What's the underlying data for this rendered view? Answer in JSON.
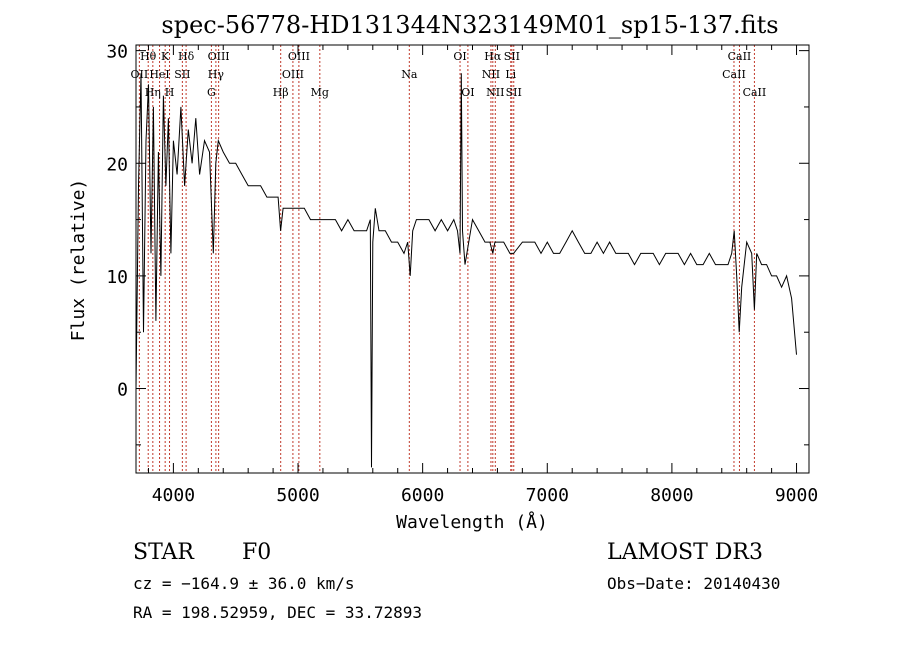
{
  "chart_data": {
    "type": "line",
    "title": "spec-56778-HD131344N323149M01_sp15-137.fits",
    "xlabel": "Wavelength (Å)",
    "ylabel": "Flux (relative)",
    "xlim": [
      3700,
      9100
    ],
    "ylim": [
      -7.5,
      30.5
    ],
    "xticks": [
      4000,
      5000,
      6000,
      7000,
      8000,
      9000
    ],
    "yticks": [
      0,
      10,
      20,
      30
    ],
    "series": [
      {
        "name": "spectrum",
        "x": [
          3700,
          3720,
          3740,
          3760,
          3780,
          3800,
          3820,
          3840,
          3860,
          3880,
          3900,
          3920,
          3940,
          3960,
          3980,
          4000,
          4030,
          4060,
          4090,
          4120,
          4150,
          4180,
          4210,
          4250,
          4290,
          4320,
          4340,
          4360,
          4400,
          4450,
          4500,
          4550,
          4600,
          4650,
          4700,
          4750,
          4800,
          4840,
          4860,
          4880,
          4920,
          4960,
          5000,
          5050,
          5100,
          5150,
          5200,
          5250,
          5300,
          5350,
          5400,
          5450,
          5500,
          5550,
          5580,
          5590,
          5600,
          5620,
          5650,
          5700,
          5750,
          5800,
          5850,
          5880,
          5900,
          5920,
          5950,
          6000,
          6050,
          6100,
          6150,
          6200,
          6250,
          6280,
          6300,
          6310,
          6320,
          6340,
          6400,
          6450,
          6500,
          6540,
          6563,
          6580,
          6600,
          6650,
          6700,
          6730,
          6800,
          6850,
          6900,
          6950,
          7000,
          7050,
          7100,
          7150,
          7200,
          7250,
          7300,
          7350,
          7400,
          7450,
          7500,
          7550,
          7600,
          7650,
          7700,
          7750,
          7800,
          7850,
          7900,
          7950,
          8000,
          8050,
          8100,
          8150,
          8200,
          8250,
          8300,
          8350,
          8400,
          8450,
          8480,
          8500,
          8520,
          8540,
          8560,
          8600,
          8640,
          8662,
          8680,
          8720,
          8760,
          8800,
          8840,
          8880,
          8920,
          8960,
          9000
        ],
        "y": [
          0,
          18,
          28,
          5,
          22,
          27,
          12,
          25,
          6,
          21,
          10,
          26,
          18,
          24,
          12,
          22,
          19,
          25,
          18,
          23,
          20,
          24,
          19,
          22,
          21,
          12,
          20,
          22,
          21,
          20,
          20,
          19,
          18,
          18,
          18,
          17,
          17,
          17,
          14,
          16,
          16,
          16,
          16,
          16,
          15,
          15,
          15,
          15,
          15,
          14,
          15,
          14,
          14,
          14,
          15,
          -7,
          13,
          16,
          14,
          14,
          13,
          13,
          12,
          13,
          10,
          14,
          15,
          15,
          15,
          14,
          15,
          14,
          15,
          14,
          12,
          28,
          14,
          11,
          15,
          14,
          13,
          13,
          12,
          13,
          13,
          13,
          12,
          12,
          13,
          13,
          13,
          12,
          13,
          12,
          12,
          13,
          14,
          13,
          12,
          12,
          13,
          12,
          13,
          12,
          12,
          12,
          11,
          12,
          12,
          12,
          11,
          12,
          12,
          12,
          11,
          12,
          11,
          11,
          12,
          11,
          11,
          11,
          12,
          14,
          10,
          5,
          9,
          13,
          12,
          7,
          12,
          11,
          11,
          10,
          10,
          9,
          10,
          8,
          3
        ]
      }
    ],
    "lines": [
      {
        "label": "OII",
        "wl": 3727,
        "row": 2
      },
      {
        "label": "Hθ",
        "wl": 3798,
        "row": 1
      },
      {
        "label": "Hη",
        "wl": 3835,
        "row": 3
      },
      {
        "label": "HeI",
        "wl": 3889,
        "row": 2
      },
      {
        "label": "K",
        "wl": 3934,
        "row": 1
      },
      {
        "label": "H",
        "wl": 3969,
        "row": 3
      },
      {
        "label": "SII",
        "wl": 4072,
        "row": 2
      },
      {
        "label": "Hδ",
        "wl": 4102,
        "row": 1
      },
      {
        "label": "G",
        "wl": 4305,
        "row": 3
      },
      {
        "label": "Hγ",
        "wl": 4341,
        "row": 2
      },
      {
        "label": "OIII",
        "wl": 4363,
        "row": 1
      },
      {
        "label": "Hβ",
        "wl": 4861,
        "row": 3
      },
      {
        "label": "OIII",
        "wl": 4959,
        "row": 2
      },
      {
        "label": "OIII",
        "wl": 5007,
        "row": 1
      },
      {
        "label": "Mg",
        "wl": 5175,
        "row": 3
      },
      {
        "label": "Na",
        "wl": 5893,
        "row": 2
      },
      {
        "label": "OI",
        "wl": 6300,
        "row": 1
      },
      {
        "label": "OI",
        "wl": 6363,
        "row": 3
      },
      {
        "label": "NII",
        "wl": 6548,
        "row": 2
      },
      {
        "label": "Hα",
        "wl": 6563,
        "row": 1
      },
      {
        "label": "NII",
        "wl": 6583,
        "row": 3
      },
      {
        "label": "Li",
        "wl": 6707,
        "row": 2
      },
      {
        "label": "SII",
        "wl": 6716,
        "row": 1
      },
      {
        "label": "SII",
        "wl": 6731,
        "row": 3
      },
      {
        "label": "CaII",
        "wl": 8498,
        "row": 2
      },
      {
        "label": "CaII",
        "wl": 8542,
        "row": 1
      },
      {
        "label": "CaII",
        "wl": 8662,
        "row": 3
      }
    ]
  },
  "footer": {
    "object_class": "STAR",
    "subclass": "F0",
    "survey": "LAMOST DR3",
    "cz": "cz = −164.9 ± 36.0 km/s",
    "obs_date": "Obs−Date: 20140430",
    "radec": "RA = 198.52959, DEC =  33.72893"
  }
}
